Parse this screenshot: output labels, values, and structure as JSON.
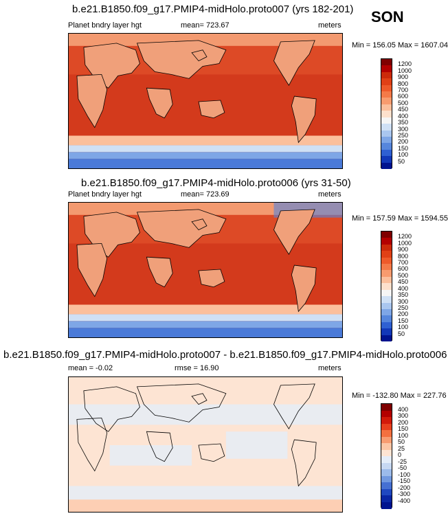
{
  "season": "SON",
  "panels": [
    {
      "title": "b.e21.B1850.f09_g17.PMIP4-midHolo.proto007 (yrs 182-201)",
      "left": "Planet bndry layer hgt",
      "center": "mean= 723.67",
      "right": "meters",
      "minmax": "Min = 156.05 Max = 1607.04"
    },
    {
      "title": "b.e21.B1850.f09_g17.PMIP4-midHolo.proto006 (yrs 31-50)",
      "left": "Planet bndry layer hgt",
      "center": "mean= 723.69",
      "right": "meters",
      "minmax": "Min = 157.59 Max = 1594.55"
    },
    {
      "title": "b.e21.B1850.f09_g17.PMIP4-midHolo.proto007 - b.e21.B1850.f09_g17.PMIP4-midHolo.proto006",
      "left": "mean =  -0.02",
      "center": "rmse =  16.90",
      "right": "meters",
      "minmax": "Min = -132.80 Max = 227.76"
    }
  ],
  "colorbars": {
    "absolute": {
      "labels": [
        "1200",
        "1000",
        "900",
        "800",
        "700",
        "600",
        "500",
        "450",
        "400",
        "350",
        "300",
        "250",
        "200",
        "150",
        "100",
        "50"
      ],
      "colors": [
        "#7f0000",
        "#b30000",
        "#cc2a0a",
        "#e04016",
        "#ee5a2a",
        "#f47a48",
        "#f89b6e",
        "#fbbf9c",
        "#fde0cc",
        "#f5f5f5",
        "#cfe0f5",
        "#a9c6ef",
        "#7ea6e6",
        "#5686dc",
        "#2f60d2",
        "#1238b8",
        "#00138f"
      ]
    },
    "difference": {
      "labels": [
        "400",
        "300",
        "200",
        "150",
        "100",
        "50",
        "25",
        "0",
        "-25",
        "-50",
        "-100",
        "-150",
        "-200",
        "-300",
        "-400"
      ],
      "colors": [
        "#7f0000",
        "#b30000",
        "#d21a0a",
        "#e8401e",
        "#f4703f",
        "#f89c71",
        "#fcc6a6",
        "#fde4d3",
        "#e4edf9",
        "#c6d8f2",
        "#9cbbea",
        "#7299df",
        "#4670d2",
        "#2048c0",
        "#0a26a4",
        "#00138f"
      ]
    }
  },
  "chart_data": [
    {
      "type": "heatmap",
      "title": "b.e21.B1850.f09_g17.PMIP4-midHolo.proto007 (yrs 182-201)",
      "subtitle": "SON",
      "variable": "Planet bndry layer hgt",
      "units": "meters",
      "mean": 723.67,
      "min": 156.05,
      "max": 1607.04,
      "levels": [
        50,
        100,
        150,
        200,
        250,
        300,
        350,
        400,
        450,
        500,
        600,
        700,
        800,
        900,
        1000,
        1200
      ]
    },
    {
      "type": "heatmap",
      "title": "b.e21.B1850.f09_g17.PMIP4-midHolo.proto006 (yrs 31-50)",
      "subtitle": "SON",
      "variable": "Planet bndry layer hgt",
      "units": "meters",
      "mean": 723.69,
      "min": 157.59,
      "max": 1594.55,
      "levels": [
        50,
        100,
        150,
        200,
        250,
        300,
        350,
        400,
        450,
        500,
        600,
        700,
        800,
        900,
        1000,
        1200
      ]
    },
    {
      "type": "heatmap",
      "title": "b.e21.B1850.f09_g17.PMIP4-midHolo.proto007 - b.e21.B1850.f09_g17.PMIP4-midHolo.proto006",
      "units": "meters",
      "mean": -0.02,
      "rmse": 16.9,
      "min": -132.8,
      "max": 227.76,
      "levels": [
        -400,
        -300,
        -200,
        -150,
        -100,
        -50,
        -25,
        0,
        25,
        50,
        100,
        150,
        200,
        300,
        400
      ]
    }
  ]
}
